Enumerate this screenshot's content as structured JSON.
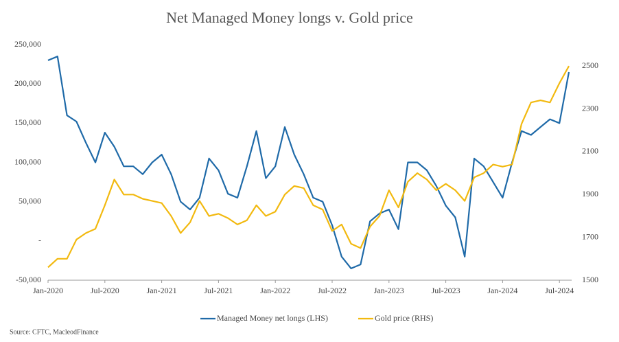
{
  "chart_data": {
    "type": "line",
    "title": "Net Managed Money longs v. Gold price",
    "source": "Source: CFTC, MacleodFinance",
    "categories": [
      "Jan-2020",
      null,
      null,
      null,
      null,
      null,
      "Jul-2020",
      null,
      null,
      null,
      null,
      null,
      "Jan-2021",
      null,
      null,
      null,
      null,
      null,
      "Jul-2021",
      null,
      null,
      null,
      null,
      null,
      "Jan-2022",
      null,
      null,
      null,
      null,
      null,
      "Jul-2022",
      null,
      null,
      null,
      null,
      null,
      "Jan-2023",
      null,
      null,
      null,
      null,
      null,
      "Jul-2023",
      null,
      null,
      null,
      null,
      null,
      "Jan-2024",
      null,
      null,
      null,
      null,
      null,
      "Jul-2024",
      null
    ],
    "series": [
      {
        "name": "Managed Money net longs (LHS)",
        "color": "#1f6aa8",
        "axis": "y",
        "values": [
          230000,
          235000,
          160000,
          152000,
          125000,
          100000,
          138000,
          120000,
          95000,
          95000,
          85000,
          100000,
          110000,
          85000,
          50000,
          40000,
          55000,
          105000,
          90000,
          60000,
          55000,
          95000,
          140000,
          80000,
          95000,
          145000,
          110000,
          85000,
          55000,
          50000,
          20000,
          -20000,
          -35000,
          -30000,
          25000,
          35000,
          40000,
          15000,
          100000,
          100000,
          90000,
          70000,
          45000,
          30000,
          -20000,
          105000,
          95000,
          75000,
          55000,
          100000,
          140000,
          135000,
          145000,
          155000,
          150000,
          215000
        ]
      },
      {
        "name": "Gold price (RHS)",
        "color": "#f2b90f",
        "axis": "y2",
        "values": [
          1560,
          1600,
          1600,
          1690,
          1720,
          1740,
          1850,
          1970,
          1900,
          1900,
          1880,
          1870,
          1860,
          1800,
          1720,
          1770,
          1870,
          1800,
          1810,
          1790,
          1760,
          1780,
          1850,
          1800,
          1820,
          1900,
          1940,
          1930,
          1850,
          1830,
          1730,
          1760,
          1670,
          1650,
          1750,
          1800,
          1920,
          1840,
          1960,
          2000,
          1970,
          1920,
          1950,
          1920,
          1870,
          1980,
          2000,
          2040,
          2030,
          2040,
          2230,
          2330,
          2340,
          2330,
          2420,
          2500
        ]
      }
    ],
    "ylim": [
      -50000,
      250000
    ],
    "yticks": [
      {
        "value": -50000,
        "label": "-50,000"
      },
      {
        "value": 0,
        "label": "-"
      },
      {
        "value": 50000,
        "label": "50,000"
      },
      {
        "value": 100000,
        "label": "100,000"
      },
      {
        "value": 150000,
        "label": "150,000"
      },
      {
        "value": 200000,
        "label": "200,000"
      },
      {
        "value": 250000,
        "label": "250,000"
      }
    ],
    "y2lim": [
      1500,
      2600
    ],
    "y2ticks": [
      1500,
      1700,
      1900,
      2100,
      2300,
      2500
    ],
    "legend": "bottom"
  }
}
